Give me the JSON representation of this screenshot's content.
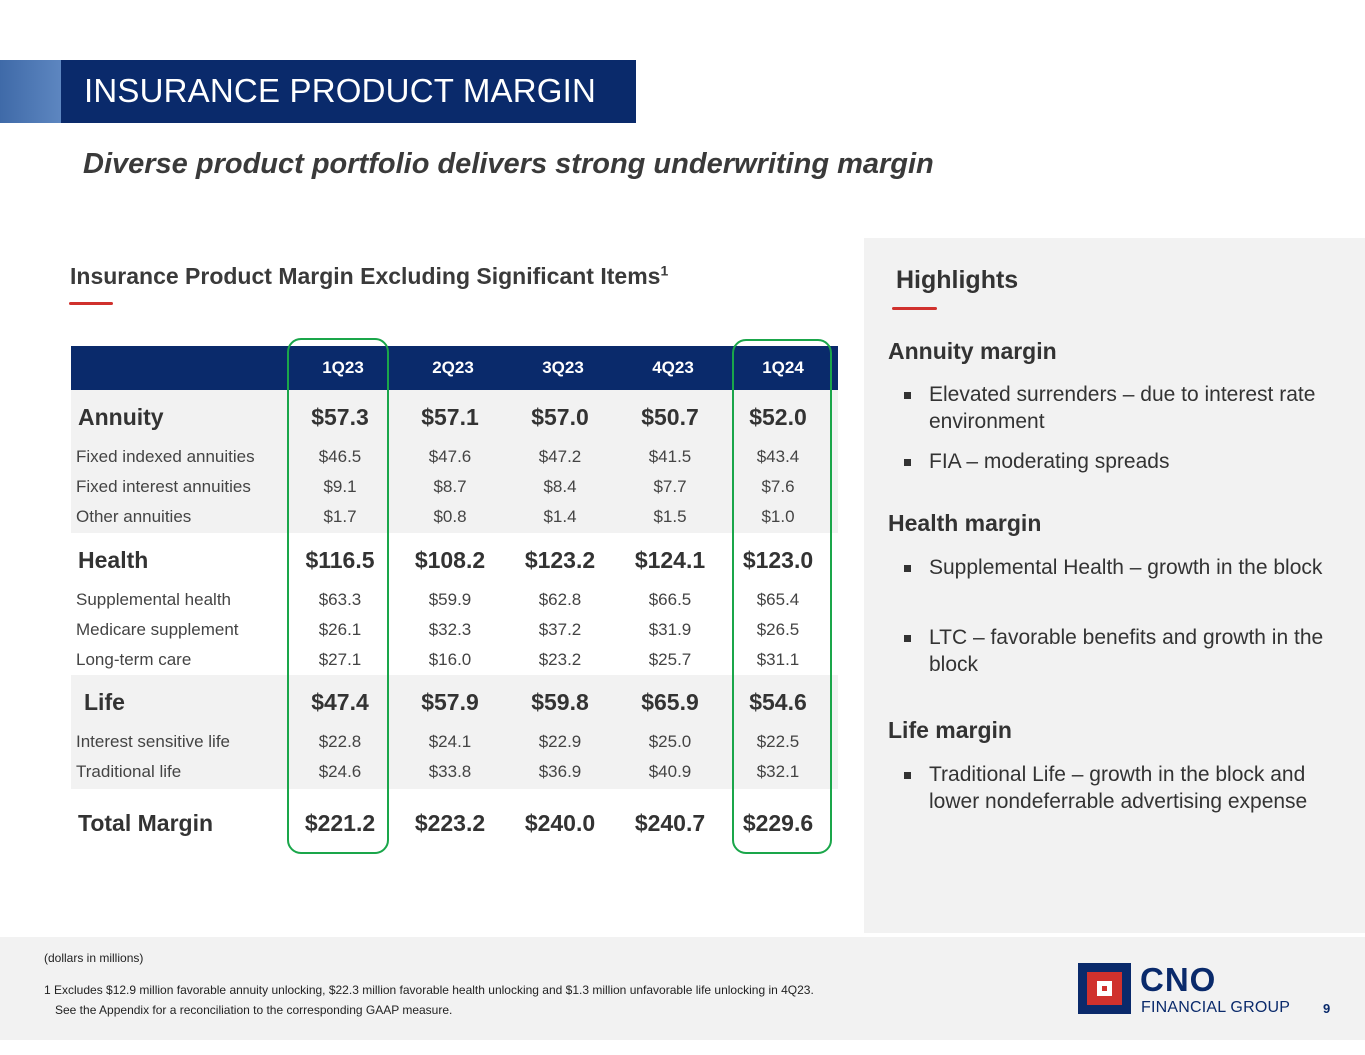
{
  "header": {
    "title": "INSURANCE PRODUCT MARGIN",
    "subtitle": "Diverse product portfolio delivers strong underwriting margin"
  },
  "table": {
    "heading": "Insurance Product Margin Excluding Significant Items",
    "heading_footnote_ref": "1",
    "columns": [
      "1Q23",
      "2Q23",
      "3Q23",
      "4Q23",
      "1Q24"
    ],
    "annuity": {
      "label": "Annuity",
      "values": [
        "$57.3",
        "$57.1",
        "$57.0",
        "$50.7",
        "$52.0"
      ],
      "rows": [
        {
          "label": "Fixed indexed annuities",
          "values": [
            "$46.5",
            "$47.6",
            "$47.2",
            "$41.5",
            "$43.4"
          ]
        },
        {
          "label": "Fixed interest annuities",
          "values": [
            "$9.1",
            "$8.7",
            "$8.4",
            "$7.7",
            "$7.6"
          ]
        },
        {
          "label": "Other annuities",
          "values": [
            "$1.7",
            "$0.8",
            "$1.4",
            "$1.5",
            "$1.0"
          ]
        }
      ]
    },
    "health": {
      "label": "Health",
      "values": [
        "$116.5",
        "$108.2",
        "$123.2",
        "$124.1",
        "$123.0"
      ],
      "rows": [
        {
          "label": "Supplemental health",
          "values": [
            "$63.3",
            "$59.9",
            "$62.8",
            "$66.5",
            "$65.4"
          ]
        },
        {
          "label": "Medicare supplement",
          "values": [
            "$26.1",
            "$32.3",
            "$37.2",
            "$31.9",
            "$26.5"
          ]
        },
        {
          "label": "Long-term care",
          "values": [
            "$27.1",
            "$16.0",
            "$23.2",
            "$25.7",
            "$31.1"
          ]
        }
      ]
    },
    "life": {
      "label": "Life",
      "values": [
        "$47.4",
        "$57.9",
        "$59.8",
        "$65.9",
        "$54.6"
      ],
      "rows": [
        {
          "label": "Interest sensitive life",
          "values": [
            "$22.8",
            "$24.1",
            "$22.9",
            "$25.0",
            "$22.5"
          ]
        },
        {
          "label": "Traditional life",
          "values": [
            "$24.6",
            "$33.8",
            "$36.9",
            "$40.9",
            "$32.1"
          ]
        }
      ]
    },
    "total": {
      "label": "Total Margin",
      "values": [
        "$221.2",
        "$223.2",
        "$240.0",
        "$240.7",
        "$229.6"
      ]
    }
  },
  "highlights": {
    "title": "Highlights",
    "sections": [
      {
        "title": "Annuity margin",
        "bullets": [
          "Elevated surrenders – due to interest rate environment",
          "FIA – moderating spreads"
        ]
      },
      {
        "title": "Health margin",
        "bullets": [
          "Supplemental Health – growth in the block",
          "LTC – favorable benefits and growth in the block"
        ]
      },
      {
        "title": "Life margin",
        "bullets": [
          "Traditional Life – growth in the block and lower nondeferrable advertising expense"
        ]
      }
    ]
  },
  "footer": {
    "units_note": "(dollars in millions)",
    "footnote_line1": "1 Excludes $12.9 million favorable annuity unlocking, $22.3 million favorable health unlocking and $1.3 million unfavorable life unlocking in 4Q23.",
    "footnote_line2": "See the Appendix for a reconciliation to the corresponding GAAP measure.",
    "logo_name": "CNO",
    "logo_sub": "FINANCIAL GROUP",
    "page_number": "9"
  },
  "colors": {
    "navy": "#0a2a6b",
    "accent_red": "#d0312d",
    "highlight_green": "#1aa64a",
    "band_gray": "#f2f2f2"
  }
}
